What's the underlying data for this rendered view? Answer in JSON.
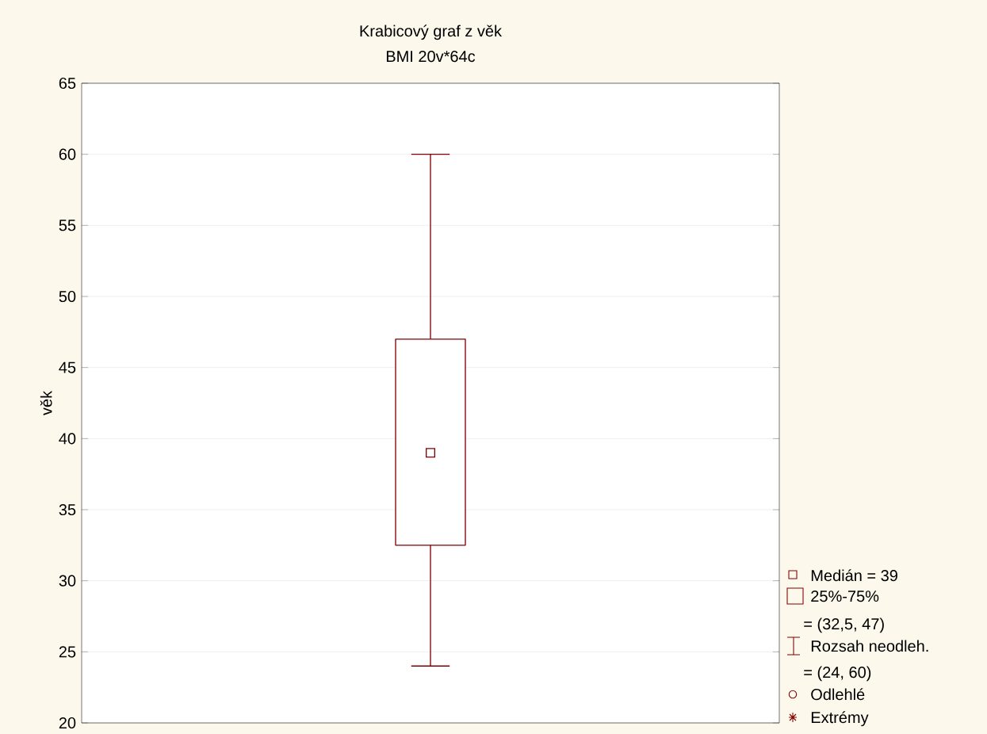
{
  "chart_data": {
    "type": "box",
    "title": "Krabicový graf z věk",
    "subtitle": "BMI 20v*64c",
    "ylabel": "věk",
    "categories": [
      null
    ],
    "boxes": [
      {
        "low": 24,
        "q1": 32.5,
        "median": 39,
        "q3": 47,
        "high": 60
      }
    ],
    "color": "#800000",
    "marker": "square",
    "grid": "y",
    "ylim": [
      20,
      65
    ],
    "yticks": [
      20,
      25,
      30,
      35,
      40,
      45,
      50,
      55,
      60,
      65
    ],
    "annotations": [
      "Medián = 39",
      "25%-75%",
      "= (32,5, 47)",
      "Rozsah neodleh.",
      "= (24, 60)",
      "Odlehlé",
      "Extrémy"
    ]
  }
}
